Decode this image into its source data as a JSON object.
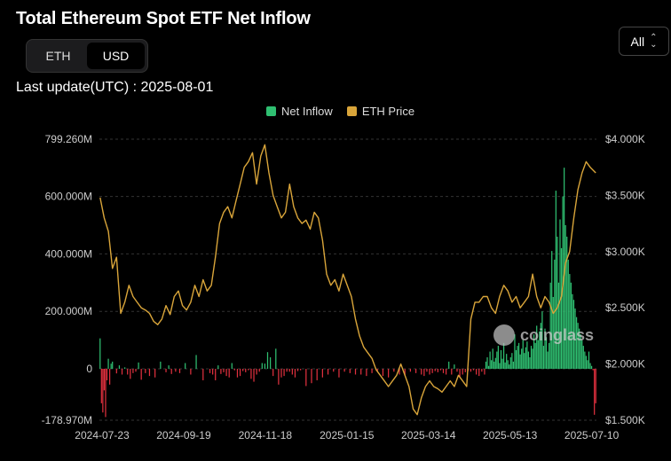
{
  "title": "Total Ethereum Spot ETF Net Inflow",
  "unit_toggle": {
    "options": [
      "ETH",
      "USD"
    ],
    "selected": "USD"
  },
  "last_update": "Last update(UTC) : 2025-08-01",
  "range_select": {
    "value": "All"
  },
  "watermark": "coinglass",
  "colors": {
    "inflow": "#2fbf71",
    "outflow": "#e0303e",
    "price": "#d9a53a",
    "grid": "#333333"
  },
  "chart_data": {
    "type": "bar",
    "title": "Total Ethereum Spot ETF Net Inflow",
    "legend": {
      "position": "top",
      "entries": [
        "Net Inflow",
        "ETH Price"
      ]
    },
    "x_ticks": [
      "2024-07-23",
      "2024-09-19",
      "2024-11-18",
      "2025-01-15",
      "2025-03-14",
      "2025-05-13",
      "2025-07-10"
    ],
    "y_left": {
      "ticks": [
        799.26,
        600,
        400,
        200,
        0,
        -178.97
      ],
      "tick_labels": [
        "799.260M",
        "600.000M",
        "400.000M",
        "200.000M",
        "0",
        "-178.970M"
      ],
      "range": [
        -178.97,
        799.26
      ]
    },
    "y_right": {
      "ticks": [
        4000,
        3500,
        3000,
        2500,
        2000,
        1500
      ],
      "tick_labels": [
        "$4.000K",
        "$3.500K",
        "$3.000K",
        "$2.500K",
        "$2.000K",
        "$1.500K"
      ],
      "range": [
        1500,
        4000
      ]
    },
    "grid": true,
    "series": [
      {
        "name": "Net Inflow",
        "type": "bar",
        "axis": "left",
        "x": [
          0,
          1,
          2,
          3,
          4,
          5,
          6,
          7,
          8,
          9,
          12,
          14,
          16,
          18,
          20,
          22,
          24,
          26,
          28,
          30,
          33,
          36,
          40,
          44,
          48,
          50,
          52,
          55,
          58,
          62,
          66,
          70,
          75,
          80,
          82,
          84,
          86,
          88,
          90,
          92,
          94,
          96,
          98,
          100,
          102,
          104,
          106,
          108,
          110,
          112,
          114,
          116,
          118,
          120,
          122,
          124,
          126,
          128,
          130,
          132,
          134,
          136,
          138,
          140,
          142,
          144,
          146,
          150,
          154,
          158,
          162,
          166,
          170,
          174,
          178,
          182,
          186,
          190,
          194,
          198,
          202,
          206,
          210,
          214,
          218,
          222,
          226,
          230,
          234,
          236,
          238,
          240,
          242,
          244,
          246,
          248,
          250,
          252,
          254,
          256,
          258,
          260,
          262,
          264,
          266,
          268,
          270,
          272,
          274,
          276,
          278,
          280,
          281,
          282,
          283,
          284,
          285,
          286,
          287,
          288,
          289,
          290,
          291,
          292,
          293,
          294,
          295,
          296,
          297,
          298,
          299,
          300,
          301,
          302,
          303,
          304,
          305,
          306,
          307,
          308,
          309,
          310,
          311,
          312,
          313,
          314,
          315,
          316,
          317,
          318,
          319,
          320,
          321,
          322,
          323,
          324,
          325,
          326,
          327,
          328,
          329,
          330,
          331,
          332,
          333,
          334,
          335,
          336,
          337,
          338,
          339,
          340,
          341,
          342,
          343,
          344,
          345,
          346,
          347,
          348,
          349,
          350,
          351,
          352,
          353,
          354,
          355,
          356,
          357,
          358,
          359,
          360,
          361
        ],
        "values": [
          106,
          -120,
          -152,
          -75,
          -168,
          -40,
          35,
          -55,
          18,
          25,
          -16,
          12,
          -20,
          5,
          -20,
          -35,
          -15,
          -10,
          22,
          -38,
          -15,
          -25,
          -30,
          25,
          -12,
          12,
          -18,
          -10,
          -15,
          20,
          -20,
          48,
          -40,
          -15,
          -20,
          -40,
          12,
          -18,
          -12,
          -25,
          -30,
          20,
          -5,
          -30,
          -25,
          -8,
          -12,
          -5,
          -35,
          -45,
          -20,
          -10,
          20,
          18,
          58,
          40,
          -25,
          70,
          -55,
          -30,
          -25,
          -10,
          -10,
          -20,
          -30,
          -8,
          -5,
          -60,
          -50,
          -40,
          -30,
          -20,
          -10,
          -30,
          -10,
          -15,
          -20,
          -20,
          -25,
          -15,
          -10,
          -25,
          -30,
          -10,
          -20,
          -25,
          -10,
          -15,
          -20,
          -25,
          -10,
          -20,
          -15,
          -8,
          -12,
          -5,
          -15,
          -20,
          25,
          -20,
          15,
          -10,
          -30,
          -20,
          -12,
          -8,
          -10,
          -5,
          -20,
          -25,
          -10,
          -20,
          25,
          40,
          10,
          60,
          30,
          70,
          25,
          38,
          60,
          80,
          20,
          65,
          35,
          90,
          22,
          52,
          30,
          15,
          40,
          55,
          25,
          120,
          65,
          80,
          90,
          50,
          70,
          100,
          55,
          75,
          95,
          60,
          40,
          80,
          70,
          120,
          90,
          150,
          100,
          130,
          160,
          200,
          80,
          140,
          110,
          60,
          90,
          300,
          410,
          250,
          380,
          620,
          460,
          300,
          520,
          420,
          600,
          700,
          500,
          460,
          380,
          330,
          300,
          260,
          240,
          210,
          180,
          160,
          140,
          120,
          100,
          80,
          60,
          45,
          30,
          60,
          20,
          10,
          -5,
          -160,
          -120
        ]
      },
      {
        "name": "ETH Price",
        "type": "line",
        "axis": "right",
        "x": [
          0,
          3,
          6,
          9,
          12,
          15,
          18,
          21,
          24,
          27,
          30,
          33,
          36,
          39,
          42,
          45,
          48,
          51,
          54,
          57,
          60,
          63,
          66,
          69,
          72,
          75,
          78,
          81,
          84,
          87,
          90,
          93,
          96,
          99,
          102,
          105,
          108,
          111,
          114,
          117,
          120,
          123,
          126,
          129,
          132,
          135,
          138,
          141,
          144,
          147,
          150,
          153,
          156,
          159,
          162,
          165,
          168,
          171,
          174,
          177,
          180,
          183,
          186,
          189,
          192,
          195,
          198,
          201,
          204,
          207,
          210,
          213,
          216,
          219,
          222,
          225,
          228,
          231,
          234,
          237,
          240,
          243,
          246,
          249,
          252,
          255,
          258,
          261,
          264,
          267,
          270,
          273,
          276,
          279,
          282,
          285,
          288,
          291,
          294,
          297,
          300,
          303,
          306,
          309,
          312,
          315,
          318,
          321,
          324,
          327,
          330,
          333,
          336,
          339,
          342,
          345,
          348,
          351,
          354,
          357,
          361
        ],
        "values": [
          3480,
          3300,
          3180,
          2850,
          2950,
          2450,
          2550,
          2700,
          2600,
          2550,
          2500,
          2480,
          2450,
          2380,
          2350,
          2400,
          2520,
          2440,
          2600,
          2650,
          2520,
          2480,
          2550,
          2700,
          2600,
          2750,
          2650,
          2700,
          2950,
          3250,
          3350,
          3400,
          3300,
          3450,
          3600,
          3750,
          3800,
          3880,
          3600,
          3850,
          3950,
          3700,
          3500,
          3400,
          3300,
          3350,
          3600,
          3400,
          3300,
          3250,
          3280,
          3200,
          3350,
          3300,
          3100,
          2800,
          2700,
          2750,
          2650,
          2800,
          2700,
          2600,
          2400,
          2250,
          2150,
          2100,
          2050,
          1950,
          1900,
          1850,
          1800,
          1850,
          1900,
          2000,
          1900,
          1800,
          1600,
          1550,
          1700,
          1800,
          1850,
          1800,
          1780,
          1750,
          1800,
          1850,
          1800,
          1900,
          1850,
          1800,
          2400,
          2550,
          2550,
          2600,
          2600,
          2500,
          2450,
          2600,
          2700,
          2650,
          2550,
          2600,
          2500,
          2550,
          2600,
          2800,
          2600,
          2500,
          2600,
          2550,
          2450,
          2500,
          2600,
          2900,
          3000,
          3300,
          3550,
          3700,
          3800,
          3750,
          3700
        ]
      }
    ]
  }
}
